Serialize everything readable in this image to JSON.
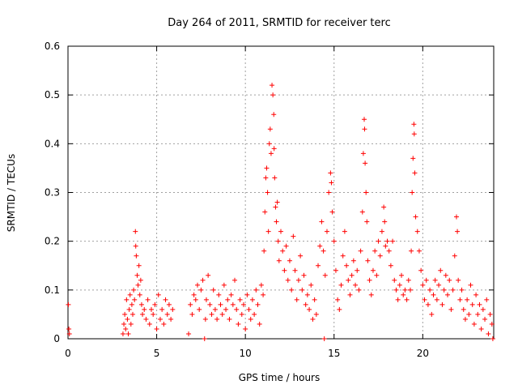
{
  "chart_data": {
    "type": "scatter",
    "title": "Day 264 of 2011, SRMTID for receiver terc",
    "xlabel": "GPS time / hours",
    "ylabel": "SRMTID / TECUs",
    "xlim": [
      0,
      24
    ],
    "ylim": [
      0,
      0.6
    ],
    "xticks": [
      0,
      5,
      10,
      15,
      20
    ],
    "xtick_labels": [
      "0",
      "5",
      "10",
      "15",
      "20"
    ],
    "yticks": [
      0,
      0.1,
      0.2,
      0.3,
      0.4,
      0.5,
      0.6
    ],
    "ytick_labels": [
      "0",
      "0.1",
      "0.2",
      "0.3",
      "0.4",
      "0.5",
      "0.6"
    ],
    "grid": true,
    "marker": "+",
    "marker_color": "#ff0000",
    "series": [
      {
        "name": "SRMTID",
        "points": [
          [
            0.02,
            0.07
          ],
          [
            0.05,
            0.02
          ],
          [
            0.08,
            0.01
          ],
          [
            3.1,
            0.01
          ],
          [
            3.15,
            0.03
          ],
          [
            3.2,
            0.05
          ],
          [
            3.25,
            0.02
          ],
          [
            3.3,
            0.08
          ],
          [
            3.35,
            0.04
          ],
          [
            3.4,
            0.01
          ],
          [
            3.45,
            0.06
          ],
          [
            3.5,
            0.09
          ],
          [
            3.55,
            0.03
          ],
          [
            3.6,
            0.07
          ],
          [
            3.65,
            0.05
          ],
          [
            3.7,
            0.1
          ],
          [
            3.75,
            0.08
          ],
          [
            3.8,
            0.22
          ],
          [
            3.82,
            0.19
          ],
          [
            3.85,
            0.17
          ],
          [
            3.9,
            0.13
          ],
          [
            3.95,
            0.11
          ],
          [
            4.0,
            0.15
          ],
          [
            4.05,
            0.09
          ],
          [
            4.1,
            0.12
          ],
          [
            4.15,
            0.07
          ],
          [
            4.2,
            0.05
          ],
          [
            4.3,
            0.06
          ],
          [
            4.4,
            0.04
          ],
          [
            4.5,
            0.08
          ],
          [
            4.6,
            0.03
          ],
          [
            4.7,
            0.06
          ],
          [
            4.8,
            0.05
          ],
          [
            4.9,
            0.07
          ],
          [
            5.0,
            0.02
          ],
          [
            5.1,
            0.09
          ],
          [
            5.2,
            0.04
          ],
          [
            5.3,
            0.06
          ],
          [
            5.4,
            0.03
          ],
          [
            5.5,
            0.08
          ],
          [
            5.6,
            0.05
          ],
          [
            5.7,
            0.07
          ],
          [
            5.8,
            0.04
          ],
          [
            5.9,
            0.06
          ],
          [
            6.8,
            0.01
          ],
          [
            6.9,
            0.07
          ],
          [
            7.0,
            0.05
          ],
          [
            7.1,
            0.09
          ],
          [
            7.2,
            0.08
          ],
          [
            7.3,
            0.11
          ],
          [
            7.4,
            0.06
          ],
          [
            7.5,
            0.1
          ],
          [
            7.6,
            0.12
          ],
          [
            7.7,
            0.0
          ],
          [
            7.75,
            0.04
          ],
          [
            7.8,
            0.08
          ],
          [
            7.9,
            0.13
          ],
          [
            8.0,
            0.07
          ],
          [
            8.1,
            0.05
          ],
          [
            8.2,
            0.1
          ],
          [
            8.3,
            0.06
          ],
          [
            8.4,
            0.04
          ],
          [
            8.5,
            0.09
          ],
          [
            8.6,
            0.07
          ],
          [
            8.7,
            0.05
          ],
          [
            8.8,
            0.11
          ],
          [
            8.9,
            0.06
          ],
          [
            9.0,
            0.08
          ],
          [
            9.1,
            0.04
          ],
          [
            9.2,
            0.09
          ],
          [
            9.3,
            0.07
          ],
          [
            9.4,
            0.12
          ],
          [
            9.5,
            0.06
          ],
          [
            9.6,
            0.03
          ],
          [
            9.7,
            0.08
          ],
          [
            9.8,
            0.05
          ],
          [
            9.9,
            0.07
          ],
          [
            10.0,
            0.02
          ],
          [
            10.1,
            0.09
          ],
          [
            10.2,
            0.06
          ],
          [
            10.3,
            0.04
          ],
          [
            10.4,
            0.08
          ],
          [
            10.5,
            0.05
          ],
          [
            10.6,
            0.1
          ],
          [
            10.7,
            0.07
          ],
          [
            10.8,
            0.03
          ],
          [
            10.9,
            0.11
          ],
          [
            11.0,
            0.09
          ],
          [
            11.05,
            0.18
          ],
          [
            11.1,
            0.26
          ],
          [
            11.15,
            0.33
          ],
          [
            11.2,
            0.35
          ],
          [
            11.25,
            0.3
          ],
          [
            11.3,
            0.22
          ],
          [
            11.35,
            0.4
          ],
          [
            11.4,
            0.43
          ],
          [
            11.45,
            0.38
          ],
          [
            11.5,
            0.52
          ],
          [
            11.55,
            0.5
          ],
          [
            11.6,
            0.46
          ],
          [
            11.62,
            0.39
          ],
          [
            11.65,
            0.33
          ],
          [
            11.7,
            0.27
          ],
          [
            11.75,
            0.24
          ],
          [
            11.8,
            0.28
          ],
          [
            11.85,
            0.2
          ],
          [
            11.9,
            0.16
          ],
          [
            12.0,
            0.22
          ],
          [
            12.1,
            0.18
          ],
          [
            12.2,
            0.14
          ],
          [
            12.3,
            0.19
          ],
          [
            12.4,
            0.12
          ],
          [
            12.5,
            0.16
          ],
          [
            12.6,
            0.1
          ],
          [
            12.7,
            0.21
          ],
          [
            12.8,
            0.14
          ],
          [
            12.9,
            0.08
          ],
          [
            13.0,
            0.12
          ],
          [
            13.1,
            0.17
          ],
          [
            13.2,
            0.1
          ],
          [
            13.3,
            0.13
          ],
          [
            13.4,
            0.07
          ],
          [
            13.5,
            0.09
          ],
          [
            13.6,
            0.06
          ],
          [
            13.7,
            0.11
          ],
          [
            13.8,
            0.04
          ],
          [
            13.9,
            0.08
          ],
          [
            14.0,
            0.05
          ],
          [
            14.1,
            0.15
          ],
          [
            14.2,
            0.19
          ],
          [
            14.3,
            0.24
          ],
          [
            14.4,
            0.18
          ],
          [
            14.45,
            0.0
          ],
          [
            14.5,
            0.13
          ],
          [
            14.6,
            0.22
          ],
          [
            14.7,
            0.3
          ],
          [
            14.8,
            0.34
          ],
          [
            14.85,
            0.32
          ],
          [
            14.9,
            0.26
          ],
          [
            15.0,
            0.2
          ],
          [
            15.1,
            0.14
          ],
          [
            15.2,
            0.08
          ],
          [
            15.3,
            0.06
          ],
          [
            15.4,
            0.11
          ],
          [
            15.5,
            0.17
          ],
          [
            15.6,
            0.22
          ],
          [
            15.7,
            0.15
          ],
          [
            15.8,
            0.12
          ],
          [
            15.9,
            0.09
          ],
          [
            16.0,
            0.13
          ],
          [
            16.1,
            0.16
          ],
          [
            16.2,
            0.11
          ],
          [
            16.3,
            0.14
          ],
          [
            16.4,
            0.1
          ],
          [
            16.5,
            0.18
          ],
          [
            16.6,
            0.26
          ],
          [
            16.65,
            0.38
          ],
          [
            16.7,
            0.45
          ],
          [
            16.72,
            0.43
          ],
          [
            16.75,
            0.36
          ],
          [
            16.8,
            0.3
          ],
          [
            16.85,
            0.24
          ],
          [
            16.9,
            0.16
          ],
          [
            17.0,
            0.12
          ],
          [
            17.1,
            0.09
          ],
          [
            17.2,
            0.14
          ],
          [
            17.3,
            0.18
          ],
          [
            17.4,
            0.13
          ],
          [
            17.5,
            0.2
          ],
          [
            17.6,
            0.17
          ],
          [
            17.7,
            0.22
          ],
          [
            17.8,
            0.27
          ],
          [
            17.85,
            0.24
          ],
          [
            17.9,
            0.19
          ],
          [
            18.0,
            0.2
          ],
          [
            18.1,
            0.18
          ],
          [
            18.2,
            0.15
          ],
          [
            18.3,
            0.2
          ],
          [
            18.4,
            0.12
          ],
          [
            18.5,
            0.1
          ],
          [
            18.6,
            0.08
          ],
          [
            18.7,
            0.11
          ],
          [
            18.8,
            0.13
          ],
          [
            18.9,
            0.09
          ],
          [
            19.0,
            0.1
          ],
          [
            19.1,
            0.08
          ],
          [
            19.2,
            0.12
          ],
          [
            19.3,
            0.1
          ],
          [
            19.35,
            0.18
          ],
          [
            19.4,
            0.3
          ],
          [
            19.45,
            0.37
          ],
          [
            19.5,
            0.44
          ],
          [
            19.52,
            0.42
          ],
          [
            19.55,
            0.34
          ],
          [
            19.6,
            0.25
          ],
          [
            19.7,
            0.22
          ],
          [
            19.8,
            0.18
          ],
          [
            19.9,
            0.14
          ],
          [
            20.0,
            0.11
          ],
          [
            20.1,
            0.08
          ],
          [
            20.2,
            0.12
          ],
          [
            20.3,
            0.07
          ],
          [
            20.4,
            0.1
          ],
          [
            20.5,
            0.05
          ],
          [
            20.6,
            0.09
          ],
          [
            20.7,
            0.12
          ],
          [
            20.8,
            0.08
          ],
          [
            20.9,
            0.11
          ],
          [
            21.0,
            0.14
          ],
          [
            21.1,
            0.07
          ],
          [
            21.2,
            0.1
          ],
          [
            21.3,
            0.13
          ],
          [
            21.4,
            0.09
          ],
          [
            21.5,
            0.12
          ],
          [
            21.6,
            0.06
          ],
          [
            21.7,
            0.1
          ],
          [
            21.8,
            0.17
          ],
          [
            21.9,
            0.25
          ],
          [
            21.95,
            0.22
          ],
          [
            22.0,
            0.12
          ],
          [
            22.1,
            0.08
          ],
          [
            22.2,
            0.1
          ],
          [
            22.3,
            0.06
          ],
          [
            22.4,
            0.04
          ],
          [
            22.5,
            0.08
          ],
          [
            22.6,
            0.05
          ],
          [
            22.7,
            0.11
          ],
          [
            22.8,
            0.07
          ],
          [
            22.9,
            0.03
          ],
          [
            23.0,
            0.09
          ],
          [
            23.1,
            0.05
          ],
          [
            23.2,
            0.07
          ],
          [
            23.3,
            0.02
          ],
          [
            23.4,
            0.06
          ],
          [
            23.5,
            0.04
          ],
          [
            23.6,
            0.08
          ],
          [
            23.7,
            0.01
          ],
          [
            23.8,
            0.05
          ],
          [
            23.9,
            0.03
          ],
          [
            23.95,
            0.0
          ]
        ]
      }
    ]
  }
}
